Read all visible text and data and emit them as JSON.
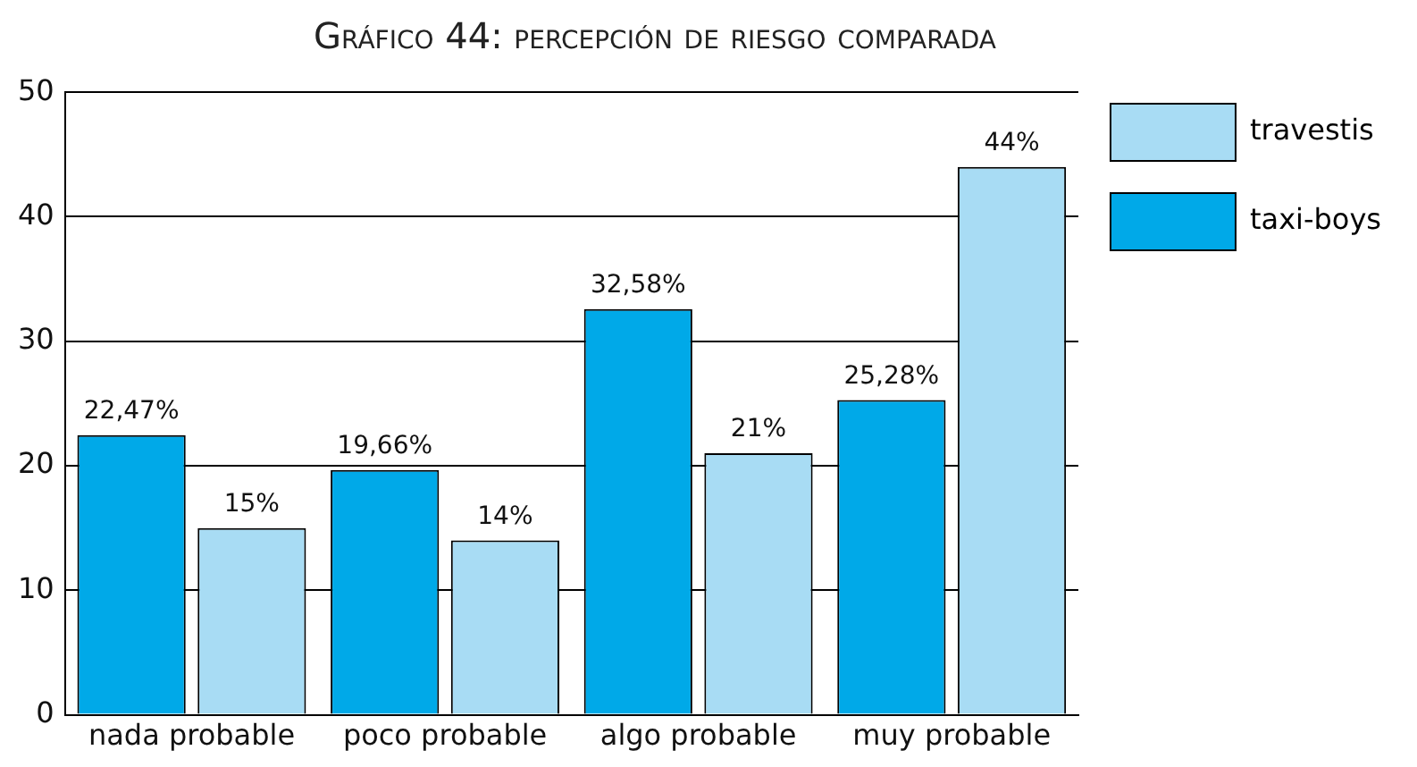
{
  "chart_data": {
    "type": "bar",
    "title": "Gráfico 44: percepción de riesgo comparada",
    "categories": [
      "nada probable",
      "poco probable",
      "algo probable",
      "muy probable"
    ],
    "series": [
      {
        "name": "taxi-boys",
        "color": "#00a9e8",
        "values": [
          22.47,
          19.66,
          32.58,
          25.28
        ],
        "value_labels": [
          "22,47%",
          "19,66%",
          "32,58%",
          "25,28%"
        ]
      },
      {
        "name": "travestis",
        "color": "#a8dcf4",
        "values": [
          15,
          14,
          21,
          44
        ],
        "value_labels": [
          "15%",
          "14%",
          "21%",
          "44%"
        ]
      }
    ],
    "ylim": [
      0,
      50
    ],
    "yticks": [
      0,
      10,
      20,
      30,
      40,
      50
    ],
    "grid": "y",
    "legend": "top right"
  }
}
